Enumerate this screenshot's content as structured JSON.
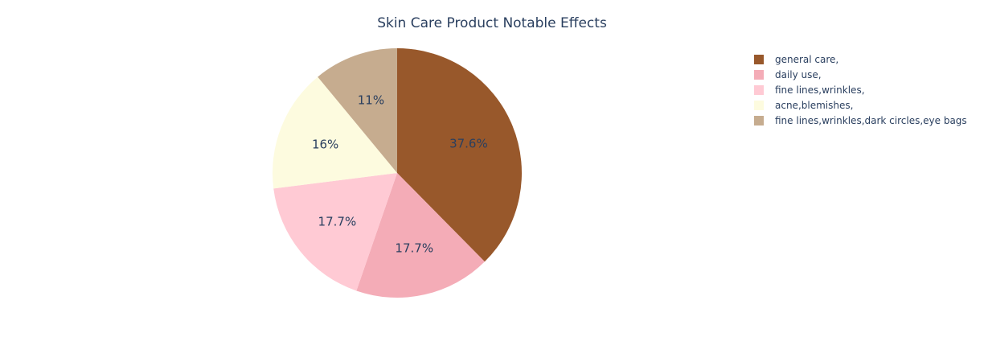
{
  "chart_data": {
    "type": "pie",
    "title": "Skin Care Product Notable Effects",
    "slices": [
      {
        "label": "general care,",
        "percent": 37.6,
        "display": "37.6%",
        "color": "#98582b"
      },
      {
        "label": "daily use,",
        "percent": 17.7,
        "display": "17.7%",
        "color": "#f4acb7"
      },
      {
        "label": "fine lines,wrinkles,",
        "percent": 17.7,
        "display": "17.7%",
        "color": "#ffcad4"
      },
      {
        "label": "acne,blemishes,",
        "percent": 16.0,
        "display": "16%",
        "color": "#fdfbdf"
      },
      {
        "label": "fine lines,wrinkles,dark circles,eye bags",
        "percent": 11.0,
        "display": "11%",
        "color": "#c6ac8f"
      }
    ],
    "sort_order": "clockwise from top",
    "legend_placement": "top-right"
  }
}
